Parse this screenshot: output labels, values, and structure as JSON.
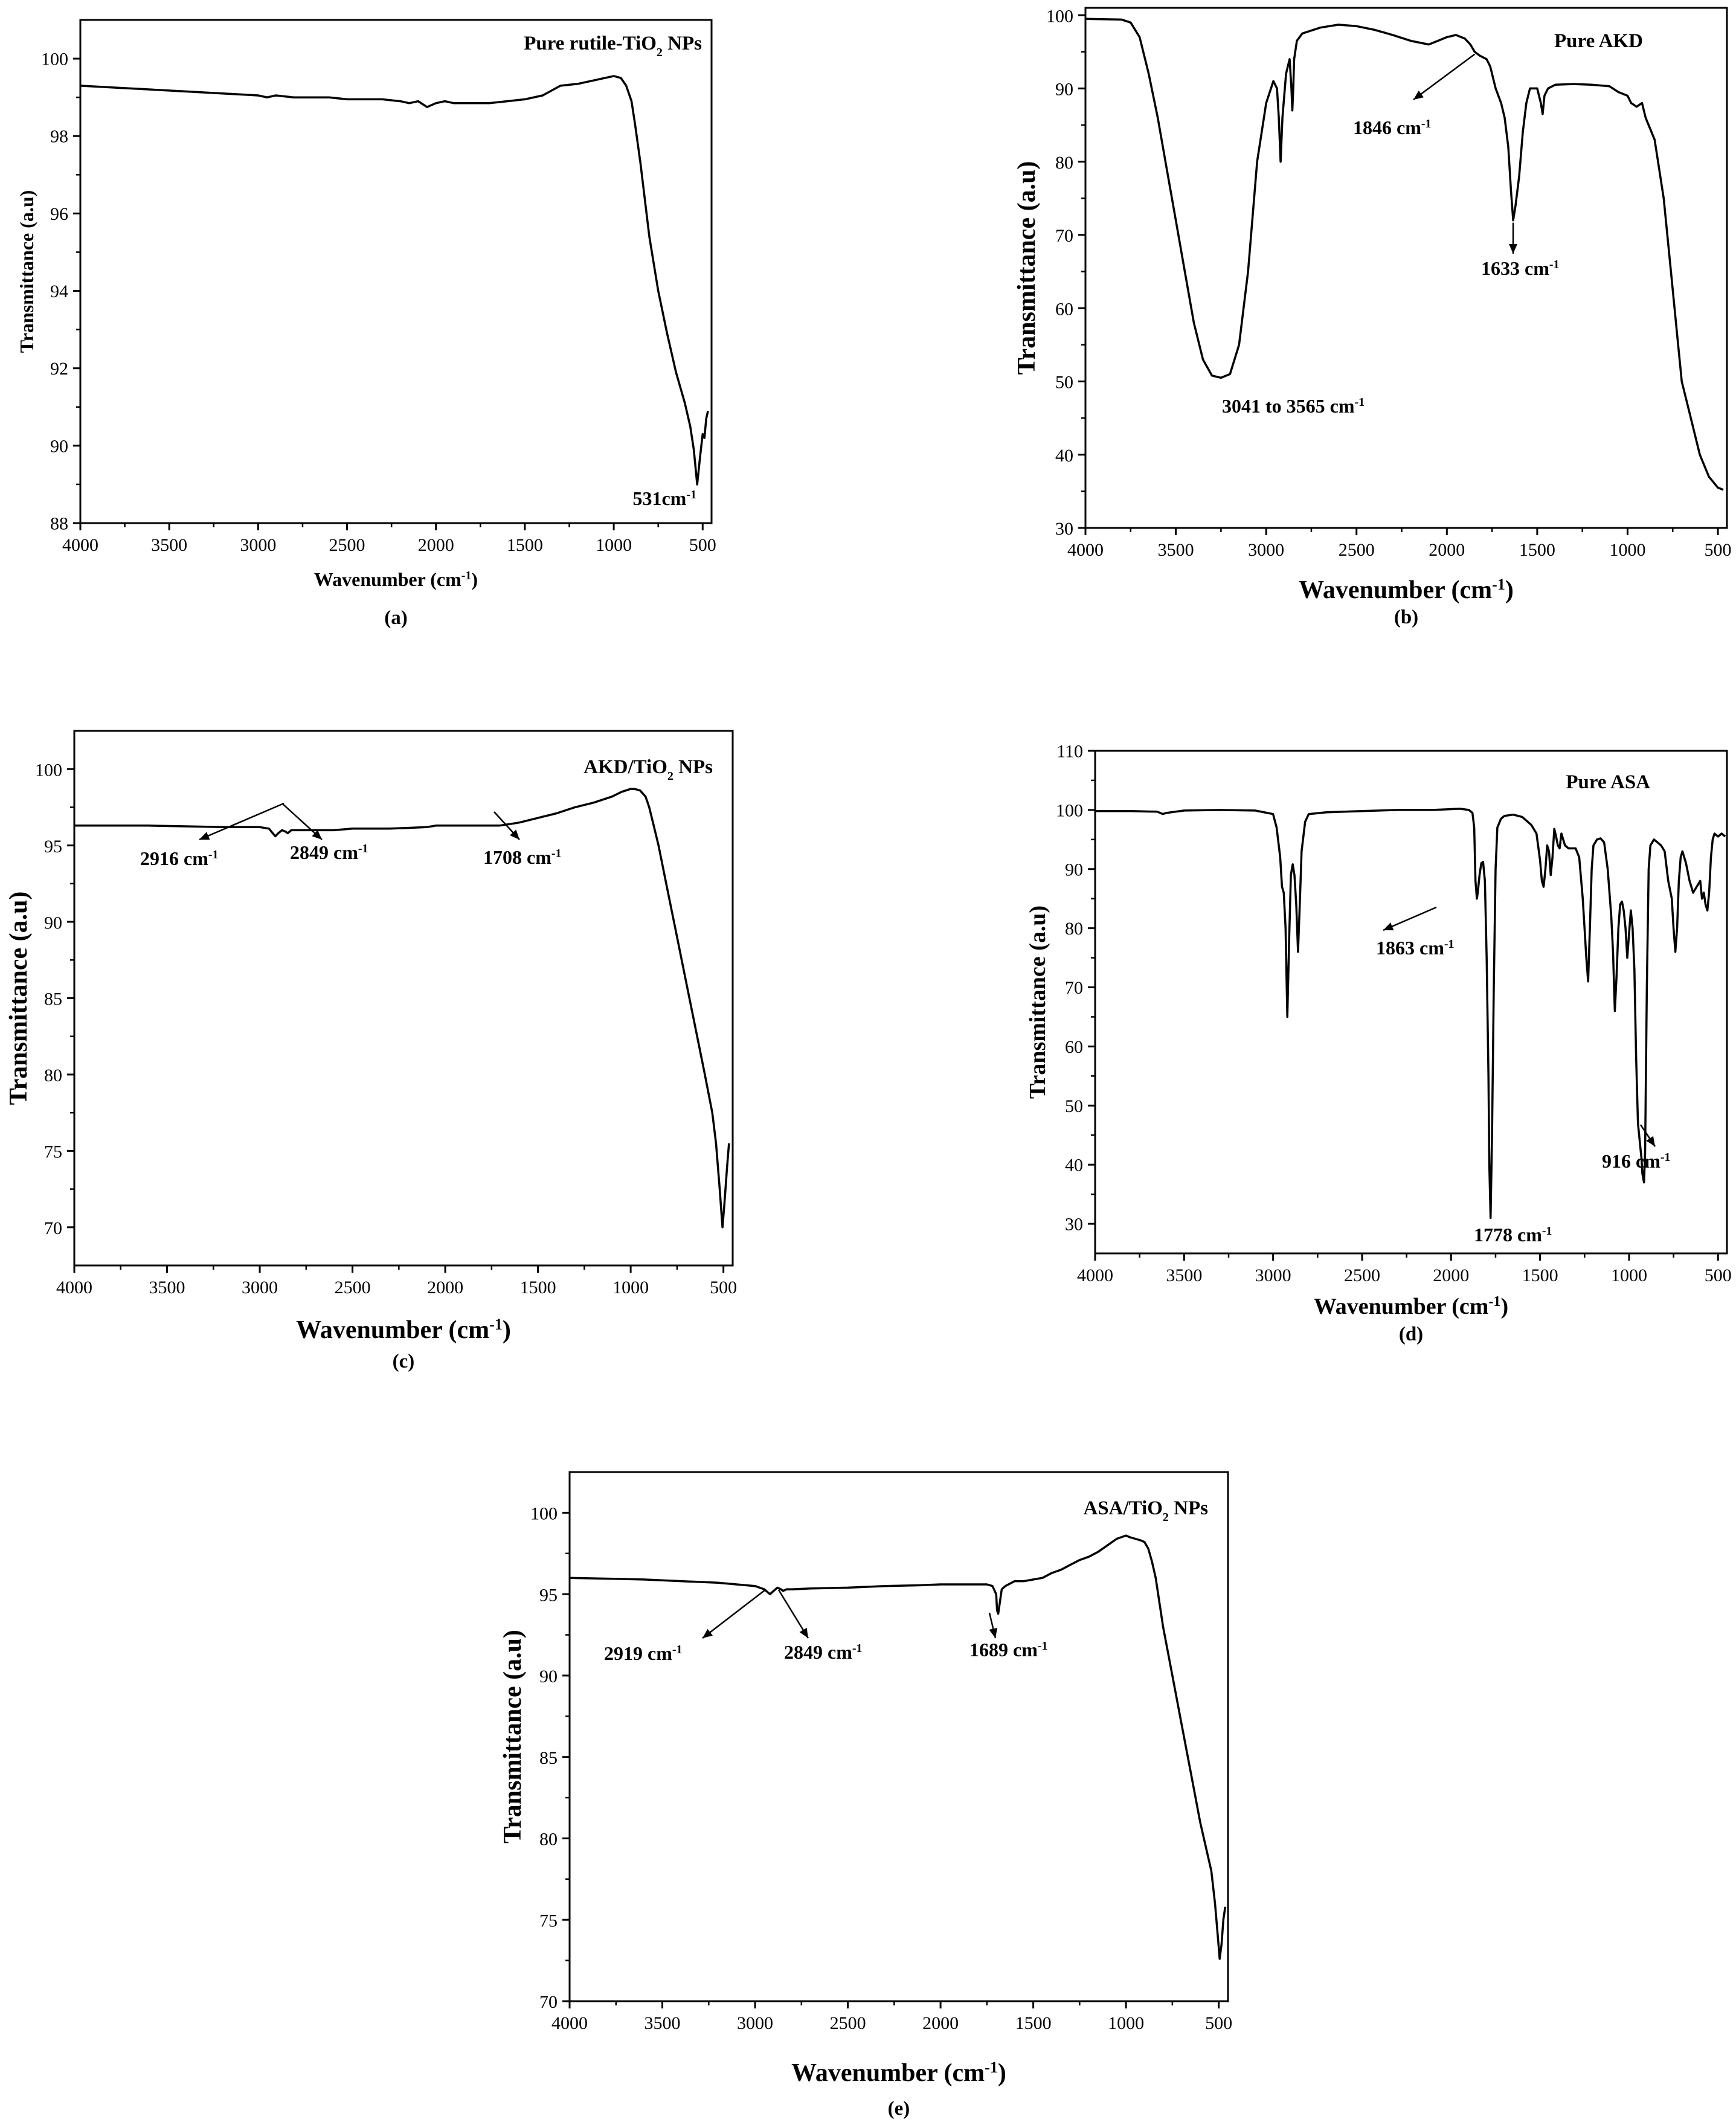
{
  "chart_data": [
    {
      "type": "line",
      "id": "a",
      "caption": "(a)",
      "title": "Pure rutile-TiO₂ NPs",
      "xlabel": "Wavenumber (cm⁻¹)",
      "ylabel": "Transmittance (a.u)",
      "xlim": [
        4000,
        450
      ],
      "ylim": [
        88,
        101
      ],
      "xticks": [
        4000,
        3500,
        3000,
        2500,
        2000,
        1500,
        1000,
        500
      ],
      "yticks": [
        88,
        90,
        92,
        94,
        96,
        98,
        100
      ],
      "series": [
        {
          "x": [
            4000,
            3800,
            3600,
            3400,
            3200,
            3000,
            2950,
            2900,
            2800,
            2700,
            2600,
            2500,
            2400,
            2300,
            2200,
            2150,
            2100,
            2050,
            2000,
            1950,
            1900,
            1800,
            1700,
            1600,
            1500,
            1400,
            1300,
            1200,
            1100,
            1050,
            1000,
            960,
            930,
            900,
            880,
            850,
            800,
            750,
            700,
            650,
            600,
            570,
            550,
            531,
            515,
            500,
            490,
            480,
            470
          ],
          "y": [
            99.3,
            99.25,
            99.2,
            99.15,
            99.1,
            99.05,
            99.0,
            99.05,
            99.0,
            99.0,
            99.0,
            98.95,
            98.95,
            98.95,
            98.9,
            98.85,
            98.9,
            98.75,
            98.85,
            98.9,
            98.85,
            98.85,
            98.85,
            98.9,
            98.95,
            99.05,
            99.3,
            99.35,
            99.45,
            99.5,
            99.55,
            99.5,
            99.3,
            98.9,
            98.3,
            97.3,
            95.4,
            94.0,
            92.9,
            91.9,
            91.1,
            90.5,
            89.9,
            89.0,
            89.7,
            90.3,
            90.2,
            90.7,
            90.9
          ]
        }
      ],
      "annotations": [
        {
          "text": "531cm⁻¹",
          "x": 531,
          "y": 89.0
        }
      ]
    },
    {
      "type": "line",
      "id": "b",
      "caption": "(b)",
      "title": "Pure AKD",
      "xlabel": "Wavenumber (cm⁻¹)",
      "ylabel": "Transmittance (a.u)",
      "xlim": [
        4000,
        450
      ],
      "ylim": [
        30,
        101
      ],
      "xticks": [
        4000,
        3500,
        3000,
        2500,
        2000,
        1500,
        1000,
        500
      ],
      "yticks": [
        30,
        40,
        50,
        60,
        70,
        80,
        90,
        100
      ],
      "series": [
        {
          "x": [
            4000,
            3800,
            3750,
            3700,
            3650,
            3600,
            3550,
            3500,
            3450,
            3400,
            3350,
            3300,
            3250,
            3200,
            3150,
            3100,
            3050,
            3000,
            2960,
            2940,
            2930,
            2920,
            2910,
            2890,
            2870,
            2860,
            2855,
            2850,
            2845,
            2830,
            2800,
            2700,
            2600,
            2500,
            2400,
            2300,
            2200,
            2100,
            2050,
            2000,
            1950,
            1900,
            1870,
            1846,
            1820,
            1780,
            1760,
            1730,
            1700,
            1680,
            1660,
            1645,
            1633,
            1620,
            1600,
            1580,
            1560,
            1540,
            1500,
            1480,
            1470,
            1460,
            1440,
            1400,
            1300,
            1200,
            1100,
            1050,
            1000,
            980,
            950,
            920,
            900,
            850,
            800,
            760,
            720,
            700,
            650,
            600,
            550,
            500,
            470
          ],
          "y": [
            99.5,
            99.4,
            99.0,
            97.0,
            92.0,
            86.0,
            79.0,
            72.0,
            65.0,
            58.0,
            53.0,
            50.8,
            50.5,
            51.0,
            55.0,
            65.0,
            80.0,
            88.0,
            91.0,
            90.0,
            86.0,
            80.0,
            86.0,
            92.0,
            94.0,
            90.0,
            87.0,
            90.0,
            94.0,
            96.5,
            97.5,
            98.3,
            98.7,
            98.5,
            98.0,
            97.3,
            96.5,
            96.0,
            96.5,
            97.0,
            97.3,
            96.8,
            96.0,
            95.0,
            94.5,
            94.0,
            93.0,
            90.0,
            88.0,
            86.0,
            82.0,
            76.0,
            72.0,
            74.0,
            78.0,
            84.0,
            88.0,
            90.0,
            90.0,
            88.0,
            86.5,
            89.0,
            90.0,
            90.5,
            90.6,
            90.5,
            90.3,
            89.5,
            89.0,
            88.0,
            87.5,
            88.0,
            86.0,
            83.0,
            75.0,
            65.0,
            55.0,
            50.0,
            45.0,
            40.0,
            37.0,
            35.5,
            35.2
          ]
        }
      ],
      "annotations": [
        {
          "text": "1846 cm⁻¹",
          "x": 1846,
          "y": 95.0
        },
        {
          "text": "1633 cm⁻¹",
          "x": 1633,
          "y": 72.0
        },
        {
          "text": "3041 to 3565 cm⁻¹",
          "x": 3300,
          "y": 50.5
        }
      ]
    },
    {
      "type": "line",
      "id": "c",
      "caption": "(c)",
      "title": "AKD/TiO₂ NPs",
      "xlabel": "Wavenumber (cm⁻¹)",
      "ylabel": "Transmittance (a.u)",
      "xlim": [
        4000,
        450
      ],
      "ylim": [
        67.5,
        102.5
      ],
      "xticks": [
        4000,
        3500,
        3000,
        2500,
        2000,
        1500,
        1000,
        500
      ],
      "yticks": [
        70,
        75,
        80,
        85,
        90,
        95,
        100
      ],
      "series": [
        {
          "x": [
            4000,
            3800,
            3600,
            3400,
            3200,
            3000,
            2950,
            2930,
            2916,
            2900,
            2880,
            2860,
            2849,
            2830,
            2800,
            2700,
            2600,
            2500,
            2400,
            2300,
            2200,
            2100,
            2050,
            2000,
            1900,
            1800,
            1708,
            1650,
            1600,
            1500,
            1400,
            1300,
            1200,
            1100,
            1050,
            1000,
            980,
            950,
            920,
            900,
            880,
            850,
            800,
            750,
            700,
            650,
            600,
            560,
            540,
            520,
            505,
            495,
            480,
            470
          ],
          "y": [
            96.3,
            96.3,
            96.3,
            96.25,
            96.2,
            96.2,
            96.1,
            95.8,
            95.6,
            95.8,
            96.0,
            95.9,
            95.8,
            96.0,
            96.0,
            96.0,
            96.0,
            96.1,
            96.1,
            96.1,
            96.15,
            96.2,
            96.3,
            96.3,
            96.3,
            96.3,
            96.3,
            96.4,
            96.5,
            96.8,
            97.1,
            97.5,
            97.8,
            98.2,
            98.5,
            98.7,
            98.7,
            98.6,
            98.2,
            97.5,
            96.5,
            95.0,
            92.0,
            89.0,
            86.0,
            83.0,
            80.0,
            77.5,
            75.5,
            72.5,
            70.0,
            71.5,
            74.0,
            75.5
          ]
        }
      ],
      "annotations": [
        {
          "text": "2916 cm⁻¹",
          "x": 2916,
          "y": 95.6
        },
        {
          "text": "2849 cm⁻¹",
          "x": 2849,
          "y": 95.8
        },
        {
          "text": "1708 cm⁻¹",
          "x": 1708,
          "y": 96.3
        }
      ]
    },
    {
      "type": "line",
      "id": "d",
      "caption": "(d)",
      "title": "Pure ASA",
      "xlabel": "Wavenumber (cm⁻¹)",
      "ylabel": "Transmittance (a.u)",
      "xlim": [
        4000,
        450
      ],
      "ylim": [
        25,
        110
      ],
      "xticks": [
        4000,
        3500,
        3000,
        2500,
        2000,
        1500,
        1000,
        500
      ],
      "yticks": [
        30,
        40,
        50,
        60,
        70,
        80,
        90,
        100,
        110
      ],
      "series": [
        {
          "x": [
            4000,
            3800,
            3650,
            3620,
            3600,
            3500,
            3300,
            3100,
            3000,
            2980,
            2960,
            2950,
            2940,
            2930,
            2920,
            2910,
            2900,
            2890,
            2880,
            2870,
            2860,
            2850,
            2840,
            2820,
            2800,
            2700,
            2500,
            2300,
            2100,
            1950,
            1900,
            1880,
            1870,
            1863,
            1855,
            1850,
            1840,
            1830,
            1820,
            1810,
            1800,
            1790,
            1785,
            1778,
            1770,
            1760,
            1750,
            1740,
            1720,
            1700,
            1650,
            1600,
            1550,
            1520,
            1500,
            1490,
            1480,
            1470,
            1460,
            1450,
            1440,
            1430,
            1420,
            1410,
            1400,
            1390,
            1380,
            1370,
            1360,
            1340,
            1300,
            1280,
            1260,
            1240,
            1230,
            1220,
            1210,
            1200,
            1180,
            1160,
            1140,
            1120,
            1100,
            1090,
            1080,
            1070,
            1060,
            1050,
            1040,
            1030,
            1020,
            1010,
            1000,
            990,
            980,
            970,
            960,
            950,
            940,
            930,
            925,
            916,
            910,
            900,
            890,
            880,
            860,
            840,
            820,
            800,
            780,
            760,
            750,
            740,
            730,
            720,
            710,
            700,
            690,
            680,
            660,
            640,
            620,
            600,
            590,
            580,
            570,
            560,
            550,
            540,
            530,
            520,
            500,
            480,
            460
          ],
          "y": [
            99.8,
            99.8,
            99.7,
            99.3,
            99.5,
            99.9,
            100.0,
            99.9,
            99.3,
            97.0,
            92.0,
            87.0,
            86.0,
            80.0,
            65.0,
            78.0,
            89.0,
            90.8,
            89.0,
            84.0,
            76.0,
            84.0,
            93.0,
            98.0,
            99.3,
            99.6,
            99.8,
            100.0,
            100.0,
            100.2,
            100.0,
            99.5,
            97.0,
            88.0,
            85.0,
            86.0,
            89.0,
            91.0,
            91.2,
            88.0,
            75.0,
            55.0,
            40.0,
            31.0,
            45.0,
            70.0,
            90.0,
            97.0,
            98.5,
            99.0,
            99.2,
            98.8,
            97.5,
            96.0,
            91.5,
            88.0,
            87.0,
            90.0,
            94.0,
            93.0,
            89.0,
            92.0,
            96.8,
            95.5,
            94.0,
            93.5,
            96.0,
            95.0,
            94.0,
            93.5,
            93.5,
            92.0,
            85.0,
            75.0,
            71.0,
            80.0,
            90.0,
            94.0,
            95.0,
            95.2,
            94.5,
            90.0,
            82.0,
            76.0,
            66.0,
            72.0,
            80.0,
            84.0,
            84.5,
            83.0,
            80.0,
            75.0,
            79.0,
            83.0,
            80.0,
            73.0,
            58.0,
            47.0,
            44.0,
            41.0,
            38.5,
            37.0,
            42.0,
            70.0,
            90.0,
            94.0,
            95.0,
            94.5,
            94.0,
            93.0,
            88.0,
            85.0,
            80.0,
            76.0,
            80.0,
            88.0,
            92.0,
            93.0,
            92.0,
            91.0,
            88.0,
            86.0,
            87.0,
            88.0,
            85.0,
            86.0,
            84.0,
            83.0,
            86.0,
            92.0,
            95.0,
            96.0,
            95.5,
            96.0,
            95.5
          ]
        }
      ],
      "annotations": [
        {
          "text": "1863 cm⁻¹",
          "x": 1863,
          "y": 85.0
        },
        {
          "text": "1778 cm⁻¹",
          "x": 1778,
          "y": 31.0
        },
        {
          "text": "916 cm⁻¹",
          "x": 916,
          "y": 37.0
        }
      ]
    },
    {
      "type": "line",
      "id": "e",
      "caption": "(e)",
      "title": "ASA/TiO₂ NPs",
      "xlabel": "Wavenumber (cm⁻¹)",
      "ylabel": "Transmittance (a.u)",
      "xlim": [
        4000,
        450
      ],
      "ylim": [
        70,
        102.5
      ],
      "xticks": [
        4000,
        3500,
        3000,
        2500,
        2000,
        1500,
        1000,
        500
      ],
      "yticks": [
        70,
        75,
        80,
        85,
        90,
        95,
        100
      ],
      "series": [
        {
          "x": [
            4000,
            3800,
            3600,
            3400,
            3200,
            3000,
            2950,
            2930,
            2919,
            2900,
            2880,
            2860,
            2849,
            2830,
            2800,
            2700,
            2500,
            2300,
            2100,
            2000,
            1900,
            1800,
            1750,
            1720,
            1700,
            1695,
            1689,
            1680,
            1670,
            1650,
            1600,
            1550,
            1500,
            1450,
            1400,
            1350,
            1300,
            1250,
            1200,
            1150,
            1100,
            1050,
            1000,
            980,
            950,
            920,
            900,
            880,
            860,
            840,
            820,
            800,
            750,
            700,
            650,
            600,
            560,
            540,
            520,
            505,
            495,
            485,
            475,
            465
          ],
          "y": [
            96.0,
            95.95,
            95.9,
            95.8,
            95.7,
            95.5,
            95.3,
            95.1,
            95.0,
            95.2,
            95.4,
            95.3,
            95.2,
            95.3,
            95.3,
            95.35,
            95.4,
            95.5,
            95.55,
            95.6,
            95.6,
            95.6,
            95.6,
            95.5,
            95.0,
            94.0,
            93.8,
            94.5,
            95.3,
            95.5,
            95.8,
            95.8,
            95.9,
            96.0,
            96.3,
            96.5,
            96.8,
            97.1,
            97.3,
            97.6,
            98.0,
            98.4,
            98.6,
            98.5,
            98.4,
            98.3,
            98.2,
            97.8,
            97.0,
            96.0,
            94.5,
            93.0,
            90.0,
            87.0,
            84.0,
            81.0,
            79.0,
            78.0,
            76.0,
            74.0,
            72.6,
            73.5,
            75.0,
            75.8
          ]
        }
      ],
      "annotations": [
        {
          "text": "2919 cm⁻¹",
          "x": 2919,
          "y": 95.0
        },
        {
          "text": "2849 cm⁻¹",
          "x": 2849,
          "y": 95.2
        },
        {
          "text": "1689 cm⁻¹",
          "x": 1689,
          "y": 93.8
        }
      ]
    }
  ]
}
